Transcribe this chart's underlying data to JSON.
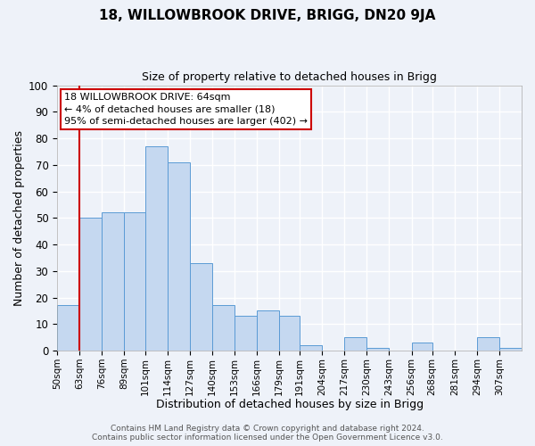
{
  "title": "18, WILLOWBROOK DRIVE, BRIGG, DN20 9JA",
  "subtitle": "Size of property relative to detached houses in Brigg",
  "xlabel": "Distribution of detached houses by size in Brigg",
  "ylabel": "Number of detached properties",
  "bin_labels": [
    "50sqm",
    "63sqm",
    "76sqm",
    "89sqm",
    "101sqm",
    "114sqm",
    "127sqm",
    "140sqm",
    "153sqm",
    "166sqm",
    "179sqm",
    "191sqm",
    "204sqm",
    "217sqm",
    "230sqm",
    "243sqm",
    "256sqm",
    "268sqm",
    "281sqm",
    "294sqm",
    "307sqm"
  ],
  "bin_edges": [
    50,
    63,
    76,
    89,
    101,
    114,
    127,
    140,
    153,
    166,
    179,
    191,
    204,
    217,
    230,
    243,
    256,
    268,
    281,
    294,
    307,
    320
  ],
  "counts": [
    17,
    50,
    52,
    52,
    77,
    71,
    33,
    17,
    13,
    15,
    13,
    2,
    0,
    5,
    1,
    0,
    3,
    0,
    0,
    5,
    1
  ],
  "bar_color": "#c5d8f0",
  "bar_edge_color": "#5b9bd5",
  "vline_x": 63,
  "vline_color": "#cc0000",
  "annotation_line1": "18 WILLOWBROOK DRIVE: 64sqm",
  "annotation_line2": "← 4% of detached houses are smaller (18)",
  "annotation_line3": "95% of semi-detached houses are larger (402) →",
  "annotation_box_color": "#cc0000",
  "annotation_fontsize": 8.0,
  "ylim": [
    0,
    100
  ],
  "yticks": [
    0,
    10,
    20,
    30,
    40,
    50,
    60,
    70,
    80,
    90,
    100
  ],
  "footer_line1": "Contains HM Land Registry data © Crown copyright and database right 2024.",
  "footer_line2": "Contains public sector information licensed under the Open Government Licence v3.0.",
  "background_color": "#eef2f9",
  "plot_background": "#eef2f9",
  "grid_color": "#ffffff",
  "title_fontsize": 11,
  "subtitle_fontsize": 9,
  "xlabel_fontsize": 9,
  "ylabel_fontsize": 9,
  "xtick_fontsize": 7.5,
  "ytick_fontsize": 8.5,
  "footer_fontsize": 6.5,
  "footer_color": "#555555"
}
